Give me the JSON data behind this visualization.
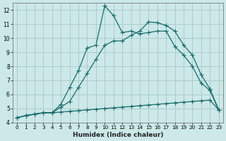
{
  "xlabel": "Humidex (Indice chaleur)",
  "bg_color": "#cce8e8",
  "grid_color": "#aacccc",
  "line_color": "#1a6b6b",
  "xlim": [
    -0.5,
    23.5
  ],
  "ylim": [
    4,
    12.5
  ],
  "xticks": [
    0,
    1,
    2,
    3,
    4,
    5,
    6,
    7,
    8,
    9,
    10,
    11,
    12,
    13,
    14,
    15,
    16,
    17,
    18,
    19,
    20,
    21,
    22,
    23
  ],
  "yticks": [
    4,
    5,
    6,
    7,
    8,
    9,
    10,
    11,
    12
  ],
  "line1_x": [
    0,
    1,
    2,
    3,
    4,
    5,
    6,
    7,
    8,
    9,
    10,
    11,
    12,
    13,
    14,
    15,
    16,
    17,
    18,
    19,
    20,
    21,
    22,
    23
  ],
  "line1_y": [
    4.35,
    4.5,
    4.6,
    4.7,
    4.7,
    4.75,
    4.8,
    4.85,
    4.9,
    4.95,
    5.0,
    5.05,
    5.1,
    5.15,
    5.2,
    5.25,
    5.3,
    5.35,
    5.4,
    5.45,
    5.5,
    5.55,
    5.6,
    4.9
  ],
  "line2_x": [
    0,
    1,
    2,
    3,
    4,
    5,
    6,
    7,
    8,
    9,
    10,
    11,
    12,
    13,
    14,
    15,
    16,
    17,
    18,
    19,
    20,
    21,
    22,
    23
  ],
  "line2_y": [
    4.35,
    4.5,
    4.6,
    4.7,
    4.7,
    5.1,
    5.5,
    6.5,
    7.5,
    8.5,
    9.5,
    9.8,
    9.8,
    10.2,
    10.5,
    11.15,
    11.1,
    10.9,
    10.5,
    9.5,
    8.8,
    7.4,
    6.4,
    4.9
  ],
  "line3_x": [
    0,
    1,
    2,
    3,
    4,
    5,
    6,
    7,
    8,
    9,
    10,
    11,
    12,
    13,
    14,
    15,
    16,
    17,
    18,
    19,
    20,
    21,
    22,
    23
  ],
  "line3_y": [
    4.35,
    4.5,
    4.6,
    4.7,
    4.7,
    5.3,
    6.5,
    7.7,
    9.3,
    9.5,
    12.3,
    11.6,
    10.4,
    10.5,
    10.3,
    10.4,
    10.5,
    10.5,
    9.4,
    8.8,
    8.0,
    6.8,
    6.3,
    4.9
  ]
}
